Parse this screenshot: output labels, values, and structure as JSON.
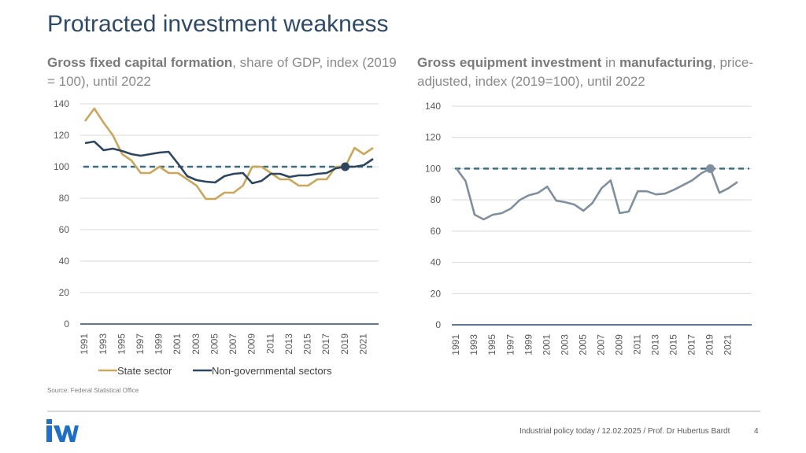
{
  "page": {
    "title": "Protracted investment weakness",
    "source": "Source: Federal Statistical Office",
    "footer": "Industrial policy today / 12.02.2025 / Prof. Dr Hubertus Bardt",
    "page_number": "4",
    "logo_text": "IW"
  },
  "subtitles": {
    "left": {
      "bold": "Gross fixed capital formation",
      "rest": ", share of GDP, index (2019 = 100), until 2022"
    },
    "right": {
      "bold1": "Gross equipment investment",
      "mid": " in ",
      "bold2": "manufacturing",
      "rest": ", price-adjusted, index (2019=100), until 2022"
    }
  },
  "colors": {
    "state": "#c9a85c",
    "nongov": "#2e4560",
    "equipment": "#7f8f9e",
    "reference": "#3d6d7e",
    "grid": "#d9d9d9",
    "axis": "#2e4a73"
  },
  "chart_data": [
    {
      "type": "line",
      "title": "Gross fixed capital formation, share of GDP, index (2019 = 100), until 2022",
      "x": [
        1991,
        1992,
        1993,
        1994,
        1995,
        1996,
        1997,
        1998,
        1999,
        2000,
        2001,
        2002,
        2003,
        2004,
        2005,
        2006,
        2007,
        2008,
        2009,
        2010,
        2011,
        2012,
        2013,
        2014,
        2015,
        2016,
        2017,
        2018,
        2019,
        2020,
        2021,
        2022
      ],
      "xticks": [
        "1991",
        "1993",
        "1995",
        "1997",
        "1999",
        "2001",
        "2003",
        "2005",
        "2007",
        "2009",
        "2011",
        "2013",
        "2015",
        "2017",
        "2019",
        "2021"
      ],
      "ylim": [
        0,
        140
      ],
      "yticks": [
        "0",
        "20",
        "40",
        "60",
        "80",
        "100",
        "120",
        "140"
      ],
      "reference_line": 100,
      "marker": {
        "x": 2019,
        "y": 100
      },
      "series": [
        {
          "name": "State sector",
          "values": [
            129,
            137,
            128,
            120,
            108,
            104,
            96,
            96,
            100,
            96,
            96,
            92,
            88,
            79.5,
            79.5,
            83.5,
            83.5,
            88,
            100,
            100,
            96,
            92,
            92,
            88,
            88,
            92,
            92,
            100,
            100,
            112,
            108,
            112
          ]
        },
        {
          "name": "Non-governmental sectors",
          "values": [
            115,
            116,
            110.5,
            111.5,
            110,
            108,
            107,
            108,
            109,
            109.5,
            102,
            94,
            91.5,
            90.5,
            90,
            94,
            95.5,
            96,
            89.5,
            91,
            95.5,
            95.5,
            93.5,
            94.5,
            94.5,
            95.5,
            96,
            99,
            100,
            100,
            101,
            105
          ]
        }
      ],
      "legend": [
        "State sector",
        "Non-governmental sectors"
      ]
    },
    {
      "type": "line",
      "title": "Gross equipment investment in manufacturing, price-adjusted, index (2019=100), until 2022",
      "x": [
        1991,
        1992,
        1993,
        1994,
        1995,
        1996,
        1997,
        1998,
        1999,
        2000,
        2001,
        2002,
        2003,
        2004,
        2005,
        2006,
        2007,
        2008,
        2009,
        2010,
        2011,
        2012,
        2013,
        2014,
        2015,
        2016,
        2017,
        2018,
        2019,
        2020,
        2021,
        2022
      ],
      "xticks": [
        "1991",
        "1993",
        "1995",
        "1997",
        "1999",
        "2001",
        "2003",
        "2005",
        "2007",
        "2009",
        "2011",
        "2013",
        "2015",
        "2017",
        "2019",
        "2021"
      ],
      "ylim": [
        0,
        140
      ],
      "yticks": [
        "0",
        "20",
        "40",
        "60",
        "80",
        "100",
        "120",
        "140"
      ],
      "reference_line": 100,
      "marker": {
        "x": 2019,
        "y": 100
      },
      "series": [
        {
          "name": "Gross equipment investment",
          "values": [
            100,
            92,
            70.5,
            67.5,
            70.5,
            71.5,
            74.5,
            80,
            83,
            84.5,
            88.5,
            79.5,
            78.5,
            77,
            73,
            78,
            87.5,
            92.5,
            71.5,
            72.5,
            85.5,
            85.5,
            83.5,
            84,
            86.5,
            89.5,
            92.5,
            97,
            100,
            84.5,
            87.5,
            91.5
          ]
        }
      ]
    }
  ]
}
